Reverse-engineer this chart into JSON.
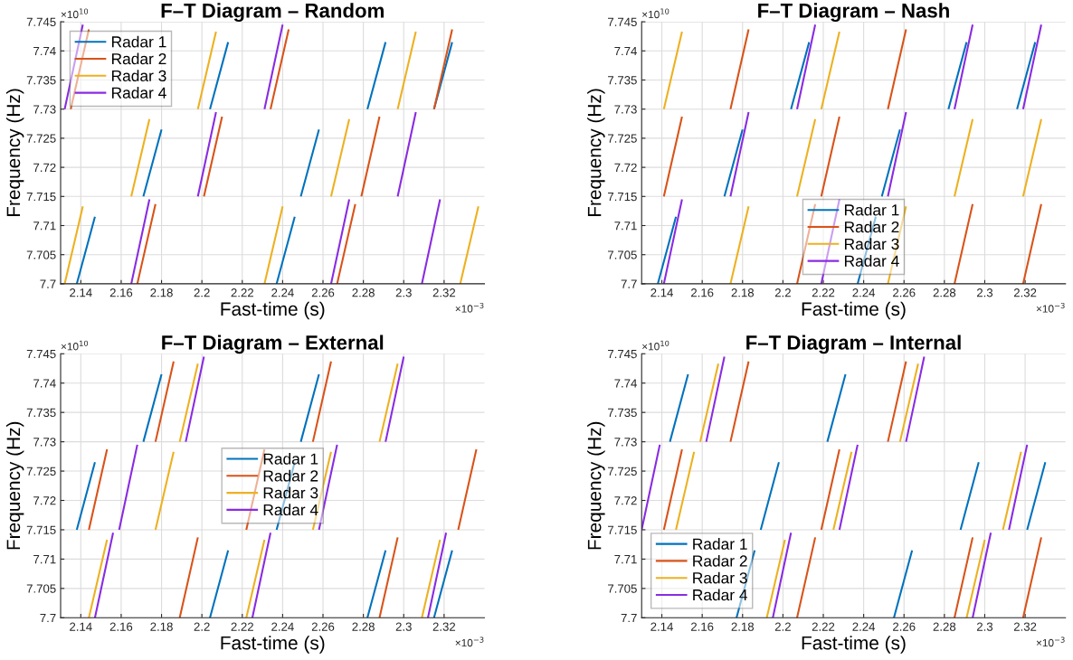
{
  "chart_data": [
    {
      "type": "line",
      "title": "F–T Diagram – Random",
      "xlabel": "Fast-time (s)",
      "ylabel": "Frequency (Hz)",
      "annotations": [
        "×10$^{10}$",
        "×10$^{−3}$"
      ],
      "xlim": [
        2.13,
        2.34
      ],
      "ylim": [
        7.7,
        7.745
      ],
      "xticks": [
        2.14,
        2.16,
        2.18,
        2.2,
        2.22,
        2.24,
        2.26,
        2.28,
        2.3,
        2.32
      ],
      "yticks": [
        7.7,
        7.705,
        7.71,
        7.715,
        7.72,
        7.725,
        7.73,
        7.735,
        7.74,
        7.745
      ],
      "grid": true,
      "legend": "top left",
      "series": [
        {
          "name": "Radar 1",
          "color": "#0072bd",
          "x": [
            2.138,
            2.147,
            null,
            2.237,
            2.246,
            null,
            2.171,
            2.18,
            null,
            2.249,
            2.258,
            null,
            2.204,
            2.213,
            null,
            2.282,
            2.291,
            null,
            2.315,
            2.324
          ],
          "values": [
            7.7,
            7.7115,
            null,
            7.7,
            7.7115,
            null,
            7.715,
            7.7265,
            null,
            7.715,
            7.7265,
            null,
            7.73,
            7.7415,
            null,
            7.73,
            7.7415,
            null,
            7.73,
            7.7415
          ]
        },
        {
          "name": "Radar 2",
          "color": "#d95319",
          "x": [
            2.168,
            2.177,
            null,
            2.267,
            2.276,
            null,
            2.201,
            2.21,
            null,
            2.279,
            2.288,
            null,
            2.135,
            2.144,
            null,
            2.234,
            2.243,
            null,
            2.315,
            2.324
          ],
          "values": [
            7.7,
            7.7137,
            null,
            7.7,
            7.7137,
            null,
            7.715,
            7.7287,
            null,
            7.715,
            7.7287,
            null,
            7.73,
            7.7437,
            null,
            7.73,
            7.7437,
            null,
            7.73,
            7.7437
          ]
        },
        {
          "name": "Radar 3",
          "color": "#edb120",
          "x": [
            2.132,
            2.141,
            null,
            2.231,
            2.24,
            null,
            2.328,
            2.337,
            null,
            2.165,
            2.174,
            null,
            2.264,
            2.273,
            null,
            2.198,
            2.207,
            null,
            2.297,
            2.306
          ],
          "values": [
            7.7,
            7.7133,
            null,
            7.7,
            7.7133,
            null,
            7.7,
            7.7133,
            null,
            7.715,
            7.7283,
            null,
            7.715,
            7.7283,
            null,
            7.73,
            7.7433,
            null,
            7.73,
            7.7433
          ]
        },
        {
          "name": "Radar 4",
          "color": "#8a2be2",
          "x": [
            2.165,
            2.174,
            null,
            2.264,
            2.273,
            null,
            2.309,
            2.318,
            null,
            2.198,
            2.207,
            null,
            2.297,
            2.306,
            null,
            2.132,
            2.141,
            null,
            2.231,
            2.24
          ],
          "values": [
            7.7,
            7.7145,
            null,
            7.7,
            7.7145,
            null,
            7.7,
            7.7145,
            null,
            7.715,
            7.7295,
            null,
            7.715,
            7.7295,
            null,
            7.73,
            7.7445,
            null,
            7.73,
            7.7445
          ]
        }
      ]
    },
    {
      "type": "line",
      "title": "F–T Diagram – Nash",
      "xlabel": "Fast-time (s)",
      "ylabel": "Frequency (Hz)",
      "annotations": [
        "×10$^{10}$",
        "×10$^{−3}$"
      ],
      "xlim": [
        2.13,
        2.34
      ],
      "ylim": [
        7.7,
        7.745
      ],
      "xticks": [
        2.14,
        2.16,
        2.18,
        2.2,
        2.22,
        2.24,
        2.26,
        2.28,
        2.3,
        2.32
      ],
      "yticks": [
        7.7,
        7.705,
        7.71,
        7.715,
        7.72,
        7.725,
        7.73,
        7.735,
        7.74,
        7.745
      ],
      "grid": true,
      "legend": "bottom",
      "series": [
        {
          "name": "Radar 1",
          "color": "#0072bd",
          "x": [
            2.138,
            2.147,
            null,
            2.237,
            2.246,
            null,
            2.171,
            2.18,
            null,
            2.249,
            2.258,
            null,
            2.204,
            2.213,
            null,
            2.282,
            2.291,
            null,
            2.316,
            2.325
          ],
          "values": [
            7.7,
            7.7115,
            null,
            7.7,
            7.7115,
            null,
            7.715,
            7.7265,
            null,
            7.715,
            7.7265,
            null,
            7.73,
            7.7415,
            null,
            7.73,
            7.7415,
            null,
            7.73,
            7.7415
          ]
        },
        {
          "name": "Radar 2",
          "color": "#d95319",
          "x": [
            2.207,
            2.216,
            null,
            2.285,
            2.294,
            null,
            2.319,
            2.328,
            null,
            2.141,
            2.15,
            null,
            2.219,
            2.228,
            null,
            2.174,
            2.183,
            null,
            2.252,
            2.261
          ],
          "values": [
            7.7,
            7.7137,
            null,
            7.7,
            7.7137,
            null,
            7.7,
            7.7137,
            null,
            7.715,
            7.7287,
            null,
            7.715,
            7.7287,
            null,
            7.73,
            7.7437,
            null,
            7.73,
            7.7437
          ]
        },
        {
          "name": "Radar 3",
          "color": "#edb120",
          "x": [
            2.174,
            2.183,
            null,
            2.252,
            2.261,
            null,
            2.207,
            2.216,
            null,
            2.285,
            2.294,
            null,
            2.319,
            2.328,
            null,
            2.141,
            2.15,
            null,
            2.219,
            2.228
          ],
          "values": [
            7.7,
            7.7133,
            null,
            7.7,
            7.7133,
            null,
            7.715,
            7.7283,
            null,
            7.715,
            7.7283,
            null,
            7.715,
            7.7283,
            null,
            7.73,
            7.7433,
            null,
            7.73,
            7.7433
          ]
        },
        {
          "name": "Radar 4",
          "color": "#8a2be2",
          "x": [
            2.141,
            2.15,
            null,
            2.219,
            2.228,
            null,
            2.174,
            2.183,
            null,
            2.252,
            2.261,
            null,
            2.207,
            2.216,
            null,
            2.285,
            2.294,
            null,
            2.319,
            2.328
          ],
          "values": [
            7.7,
            7.7145,
            null,
            7.7,
            7.7145,
            null,
            7.715,
            7.7295,
            null,
            7.715,
            7.7295,
            null,
            7.73,
            7.7445,
            null,
            7.73,
            7.7445,
            null,
            7.73,
            7.7445
          ]
        }
      ]
    },
    {
      "type": "line",
      "title": "F–T Diagram – External",
      "xlabel": "Fast-time (s)",
      "ylabel": "Frequency (Hz)",
      "annotations": [
        "×10$^{10}$",
        "×10$^{−3}$"
      ],
      "xlim": [
        2.13,
        2.34
      ],
      "ylim": [
        7.7,
        7.745
      ],
      "xticks": [
        2.14,
        2.16,
        2.18,
        2.2,
        2.22,
        2.24,
        2.26,
        2.28,
        2.3,
        2.32
      ],
      "yticks": [
        7.7,
        7.705,
        7.71,
        7.715,
        7.72,
        7.725,
        7.73,
        7.735,
        7.74,
        7.745
      ],
      "grid": true,
      "legend": "center",
      "series": [
        {
          "name": "Radar 1",
          "color": "#0072bd",
          "x": [
            2.204,
            2.213,
            null,
            2.282,
            2.291,
            null,
            2.315,
            2.324,
            null,
            2.138,
            2.147,
            null,
            2.237,
            2.246,
            null,
            2.171,
            2.18,
            null,
            2.249,
            2.258
          ],
          "values": [
            7.7,
            7.7115,
            null,
            7.7,
            7.7115,
            null,
            7.7,
            7.7115,
            null,
            7.715,
            7.7265,
            null,
            7.715,
            7.7265,
            null,
            7.73,
            7.7415,
            null,
            7.73,
            7.7415
          ]
        },
        {
          "name": "Radar 2",
          "color": "#d95319",
          "x": [
            2.189,
            2.198,
            null,
            2.288,
            2.297,
            null,
            2.144,
            2.153,
            null,
            2.222,
            2.231,
            null,
            2.327,
            2.336,
            null,
            2.177,
            2.186,
            null,
            2.255,
            2.264
          ],
          "values": [
            7.7,
            7.7137,
            null,
            7.7,
            7.7137,
            null,
            7.715,
            7.7287,
            null,
            7.715,
            7.7287,
            null,
            7.715,
            7.7287,
            null,
            7.73,
            7.7437,
            null,
            7.73,
            7.7437
          ]
        },
        {
          "name": "Radar 3",
          "color": "#edb120",
          "x": [
            2.144,
            2.153,
            null,
            2.222,
            2.231,
            null,
            2.309,
            2.318,
            null,
            2.177,
            2.186,
            null,
            2.255,
            2.264,
            null,
            2.189,
            2.198,
            null,
            2.288,
            2.297
          ],
          "values": [
            7.7,
            7.7133,
            null,
            7.7,
            7.7133,
            null,
            7.7,
            7.7133,
            null,
            7.715,
            7.7283,
            null,
            7.715,
            7.7283,
            null,
            7.73,
            7.7433,
            null,
            7.73,
            7.7433
          ]
        },
        {
          "name": "Radar 4",
          "color": "#8a2be2",
          "x": [
            2.147,
            2.156,
            null,
            2.225,
            2.234,
            null,
            2.312,
            2.321,
            null,
            2.159,
            2.168,
            null,
            2.258,
            2.267,
            null,
            2.192,
            2.201,
            null,
            2.291,
            2.3
          ],
          "values": [
            7.7,
            7.7145,
            null,
            7.7,
            7.7145,
            null,
            7.7,
            7.7145,
            null,
            7.715,
            7.7295,
            null,
            7.715,
            7.7295,
            null,
            7.73,
            7.7445,
            null,
            7.73,
            7.7445
          ]
        }
      ]
    },
    {
      "type": "line",
      "title": "F–T Diagram – Internal",
      "xlabel": "Fast-time (s)",
      "ylabel": "Frequency (Hz)",
      "annotations": [
        "×10$^{10}$",
        "×10$^{−3}$"
      ],
      "xlim": [
        2.13,
        2.34
      ],
      "ylim": [
        7.7,
        7.745
      ],
      "xticks": [
        2.14,
        2.16,
        2.18,
        2.2,
        2.22,
        2.24,
        2.26,
        2.28,
        2.3,
        2.32
      ],
      "yticks": [
        7.7,
        7.705,
        7.71,
        7.715,
        7.72,
        7.725,
        7.73,
        7.735,
        7.74,
        7.745
      ],
      "grid": true,
      "legend": "bottom left",
      "series": [
        {
          "name": "Radar 1",
          "color": "#0072bd",
          "x": [
            2.177,
            2.186,
            null,
            2.255,
            2.264,
            null,
            2.189,
            2.198,
            null,
            2.288,
            2.297,
            null,
            2.321,
            2.33,
            null,
            2.144,
            2.153,
            null,
            2.222,
            2.231
          ],
          "values": [
            7.7,
            7.7115,
            null,
            7.7,
            7.7115,
            null,
            7.715,
            7.7265,
            null,
            7.715,
            7.7265,
            null,
            7.715,
            7.7265,
            null,
            7.73,
            7.7415,
            null,
            7.73,
            7.7415
          ]
        },
        {
          "name": "Radar 2",
          "color": "#d95319",
          "x": [
            2.207,
            2.216,
            null,
            2.285,
            2.294,
            null,
            2.319,
            2.328,
            null,
            2.141,
            2.15,
            null,
            2.219,
            2.228,
            null,
            2.174,
            2.183,
            null,
            2.252,
            2.261
          ],
          "values": [
            7.7,
            7.7137,
            null,
            7.7,
            7.7137,
            null,
            7.7,
            7.7137,
            null,
            7.715,
            7.7287,
            null,
            7.715,
            7.7287,
            null,
            7.73,
            7.7437,
            null,
            7.73,
            7.7437
          ]
        },
        {
          "name": "Radar 3",
          "color": "#edb120",
          "x": [
            2.192,
            2.201,
            null,
            2.291,
            2.3,
            null,
            2.147,
            2.156,
            null,
            2.225,
            2.234,
            null,
            2.309,
            2.318,
            null,
            2.159,
            2.168,
            null,
            2.258,
            2.267
          ],
          "values": [
            7.7,
            7.7133,
            null,
            7.7,
            7.7133,
            null,
            7.715,
            7.7283,
            null,
            7.715,
            7.7283,
            null,
            7.715,
            7.7283,
            null,
            7.73,
            7.7433,
            null,
            7.73,
            7.7433
          ]
        },
        {
          "name": "Radar 4",
          "color": "#8a2be2",
          "x": [
            2.195,
            2.204,
            null,
            2.294,
            2.303,
            null,
            2.13,
            2.139,
            null,
            2.228,
            2.237,
            null,
            2.312,
            2.321,
            null,
            2.162,
            2.171,
            null,
            2.261,
            2.27
          ],
          "values": [
            7.7,
            7.7145,
            null,
            7.7,
            7.7145,
            null,
            7.715,
            7.7295,
            null,
            7.715,
            7.7295,
            null,
            7.715,
            7.7295,
            null,
            7.73,
            7.7445,
            null,
            7.73,
            7.7445
          ]
        }
      ]
    }
  ]
}
